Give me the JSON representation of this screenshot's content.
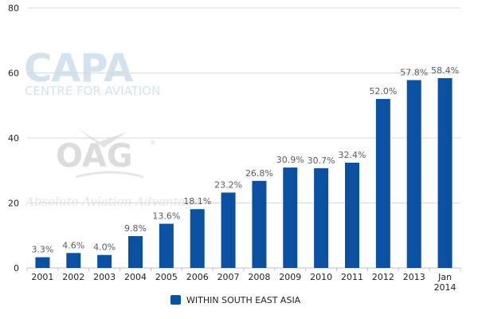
{
  "watermarks": {
    "capa_logo": "CAPA",
    "capa_tagline": "CENTRE FOR AVIATION",
    "oag_logo": "OAG",
    "oag_tagline": "Absolute Aviation Advantage"
  },
  "chart_data": {
    "type": "bar",
    "title": "",
    "xlabel": "",
    "ylabel": "",
    "ylim": [
      0,
      80
    ],
    "yticks": [
      0,
      20,
      40,
      60,
      80
    ],
    "grid": true,
    "legend_position": "bottom-center",
    "categories": [
      "2001",
      "2002",
      "2003",
      "2004",
      "2005",
      "2006",
      "2007",
      "2008",
      "2009",
      "2010",
      "2011",
      "2012",
      "2013",
      "Jan 2014"
    ],
    "series": [
      {
        "name": "WITHIN SOUTH EAST ASIA",
        "color": "#0b51a1",
        "values": [
          3.3,
          4.6,
          4.0,
          9.8,
          13.6,
          18.1,
          23.2,
          26.8,
          30.9,
          30.7,
          32.4,
          52.0,
          57.8,
          58.4
        ],
        "labels": [
          "3.3%",
          "4.6%",
          "4.0%",
          "9.8%",
          "13.6%",
          "18.1%",
          "23.2%",
          "26.8%",
          "30.9%",
          "30.7%",
          "32.4%",
          "52.0%",
          "57.8%",
          "58.4%"
        ]
      }
    ]
  }
}
